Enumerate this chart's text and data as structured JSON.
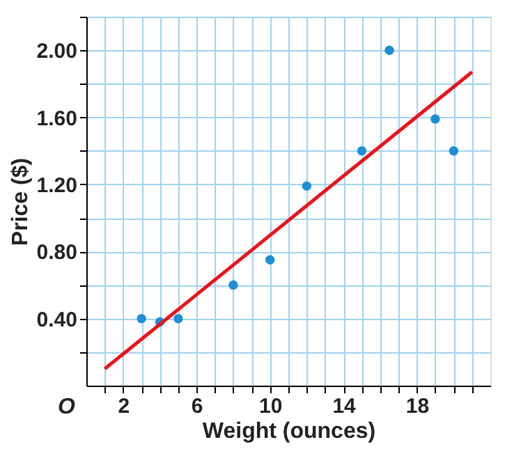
{
  "chart_data": {
    "type": "scatter",
    "xlabel": "Weight (ounces)",
    "ylabel": "Price ($)",
    "annotations": [
      "O"
    ],
    "series": [
      {
        "type": "scatter",
        "marker": "circle",
        "color": "#1e8fd5",
        "x": [
          3,
          4,
          5,
          8,
          10,
          12,
          15,
          16.5,
          19,
          20
        ],
        "values": [
          0.4,
          0.38,
          0.4,
          0.6,
          0.75,
          1.19,
          1.4,
          2.0,
          1.59,
          1.4
        ]
      },
      {
        "type": "line",
        "color": "#e8141b",
        "x": [
          1,
          21
        ],
        "values": [
          0.1,
          1.87
        ]
      }
    ],
    "xlim": [
      0,
      22
    ],
    "xticks": [
      {
        "value": 1,
        "label": null
      },
      2,
      {
        "value": 3,
        "label": null
      },
      {
        "value": 4,
        "label": null
      },
      {
        "value": 5,
        "label": null
      },
      6,
      {
        "value": 7,
        "label": null
      },
      {
        "value": 8,
        "label": null
      },
      {
        "value": 9,
        "label": null
      },
      10,
      {
        "value": 11,
        "label": null
      },
      {
        "value": 12,
        "label": null
      },
      {
        "value": 13,
        "label": null
      },
      14,
      {
        "value": 15,
        "label": null
      },
      {
        "value": 16,
        "label": null
      },
      {
        "value": 17,
        "label": null
      },
      18,
      {
        "value": 19,
        "label": null
      },
      {
        "value": 20,
        "label": null
      },
      {
        "value": 21,
        "label": null
      }
    ],
    "ylim": [
      0,
      2.2
    ],
    "yticks": [
      {
        "value": 0.2,
        "label": null
      },
      {
        "value": 0.4,
        "label": "0.40"
      },
      {
        "value": 0.6,
        "label": null
      },
      {
        "value": 0.8,
        "label": "0.80"
      },
      {
        "value": 1.0,
        "label": null
      },
      {
        "value": 1.2,
        "label": "1.20"
      },
      {
        "value": 1.4,
        "label": null
      },
      {
        "value": 1.6,
        "label": "1.60"
      },
      {
        "value": 1.8,
        "label": null
      },
      {
        "value": 2.0,
        "label": "2.00"
      },
      {
        "value": 2.2,
        "label": null
      }
    ],
    "grid": true
  }
}
